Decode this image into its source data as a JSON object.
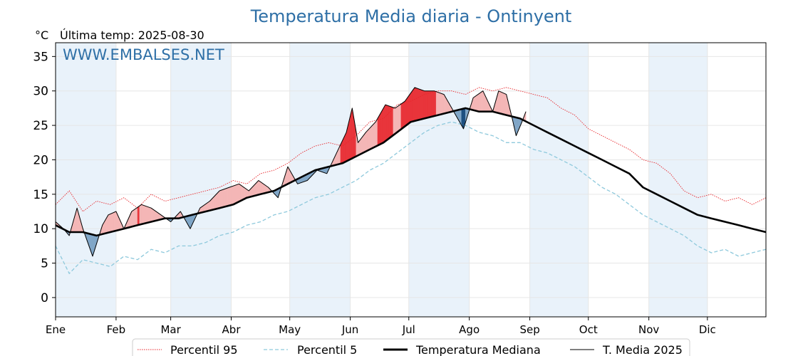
{
  "header": {
    "title": "Temperatura Media diaria - Ontinyent",
    "unit": "°C",
    "last_temp": "Última temp: 2025-08-30",
    "watermark": "WWW.EMBALSES.NET"
  },
  "colors": {
    "title": "#2e6fa6",
    "watermark": "#2e6fa6",
    "p95": "#e8262b",
    "p5": "#8ec9dc",
    "median": "#000000",
    "current": "#000000",
    "above_light": "#f4b6b6",
    "above_dark": "#e8343a",
    "below_light": "#80a6c7",
    "below_dark": "#1d4f80",
    "shade": "#e9f2fa"
  },
  "chart_data": {
    "type": "line",
    "title": "Temperatura Media diaria - Ontinyent",
    "ylabel": "°C",
    "ylim": [
      -2.8,
      37
    ],
    "yticks": [
      0,
      5,
      10,
      15,
      20,
      25,
      30,
      35
    ],
    "xlim": [
      1,
      365
    ],
    "grid": true,
    "legend_position": "bottom",
    "months": [
      {
        "label": "Ene",
        "day": 1
      },
      {
        "label": "Feb",
        "day": 32
      },
      {
        "label": "Mar",
        "day": 60
      },
      {
        "label": "Abr",
        "day": 91
      },
      {
        "label": "May",
        "day": 121
      },
      {
        "label": "Jun",
        "day": 152
      },
      {
        "label": "Jul",
        "day": 182
      },
      {
        "label": "Ago",
        "day": 213
      },
      {
        "label": "Sep",
        "day": 244
      },
      {
        "label": "Oct",
        "day": 274
      },
      {
        "label": "Nov",
        "day": 305
      },
      {
        "label": "Dic",
        "day": 335
      }
    ],
    "series": [
      {
        "name": "Percentil 95",
        "style": "dotted-red",
        "x": [
          1,
          8,
          15,
          22,
          29,
          36,
          43,
          50,
          57,
          64,
          71,
          78,
          85,
          92,
          99,
          106,
          113,
          120,
          127,
          134,
          141,
          148,
          155,
          162,
          169,
          176,
          183,
          190,
          197,
          204,
          211,
          218,
          225,
          232,
          239,
          246,
          253,
          260,
          267,
          274,
          281,
          288,
          295,
          302,
          309,
          316,
          323,
          330,
          337,
          344,
          351,
          358,
          365
        ],
        "y": [
          13.5,
          15.5,
          12.5,
          14.0,
          13.5,
          14.5,
          13.0,
          15.0,
          14.0,
          14.5,
          15.0,
          15.5,
          16.0,
          17.0,
          16.5,
          18.0,
          18.5,
          19.5,
          21.0,
          22.0,
          22.5,
          22.0,
          23.5,
          25.5,
          26.0,
          28.0,
          28.5,
          29.5,
          30.0,
          30.0,
          29.5,
          30.5,
          30.0,
          30.5,
          30.0,
          29.5,
          29.0,
          27.5,
          26.5,
          24.5,
          23.5,
          22.5,
          21.5,
          20.0,
          19.5,
          18.0,
          15.5,
          14.5,
          15.0,
          14.0,
          14.5,
          13.5,
          14.5
        ]
      },
      {
        "name": "Percentil 5",
        "style": "dashed-lightblue",
        "x": [
          1,
          8,
          15,
          22,
          29,
          36,
          43,
          50,
          57,
          64,
          71,
          78,
          85,
          92,
          99,
          106,
          113,
          120,
          127,
          134,
          141,
          148,
          155,
          162,
          169,
          176,
          183,
          190,
          197,
          204,
          211,
          218,
          225,
          232,
          239,
          246,
          253,
          260,
          267,
          274,
          281,
          288,
          295,
          302,
          309,
          316,
          323,
          330,
          337,
          344,
          351,
          358,
          365
        ],
        "y": [
          7.5,
          3.5,
          5.5,
          5.0,
          4.5,
          6.0,
          5.5,
          7.0,
          6.5,
          7.5,
          7.5,
          8.0,
          9.0,
          9.5,
          10.5,
          11.0,
          12.0,
          12.5,
          13.5,
          14.5,
          15.0,
          16.0,
          17.0,
          18.5,
          19.5,
          21.0,
          22.5,
          24.0,
          25.0,
          25.5,
          25.0,
          24.0,
          23.5,
          22.5,
          22.5,
          21.5,
          21.0,
          20.0,
          19.0,
          17.5,
          16.0,
          15.0,
          13.5,
          12.0,
          11.0,
          10.0,
          9.0,
          7.5,
          6.5,
          7.0,
          6.0,
          6.5,
          7.0
        ]
      },
      {
        "name": "Temperatura Mediana",
        "style": "thick-black",
        "x": [
          1,
          8,
          15,
          22,
          29,
          36,
          43,
          50,
          57,
          64,
          71,
          78,
          85,
          92,
          99,
          106,
          113,
          120,
          127,
          134,
          141,
          148,
          155,
          162,
          169,
          176,
          183,
          190,
          197,
          204,
          211,
          218,
          225,
          232,
          239,
          246,
          253,
          260,
          267,
          274,
          281,
          288,
          295,
          302,
          309,
          316,
          323,
          330,
          337,
          344,
          351,
          358,
          365
        ],
        "y": [
          10.5,
          9.5,
          9.5,
          9.0,
          9.5,
          10.0,
          10.5,
          11.0,
          11.5,
          11.5,
          12.0,
          12.5,
          13.0,
          13.5,
          14.5,
          15.0,
          15.5,
          16.5,
          17.5,
          18.5,
          19.0,
          19.5,
          20.5,
          21.5,
          22.5,
          24.0,
          25.5,
          26.0,
          26.5,
          27.0,
          27.5,
          27.0,
          27.0,
          26.5,
          26.0,
          25.0,
          24.0,
          23.0,
          22.0,
          21.0,
          20.0,
          19.0,
          18.0,
          16.0,
          15.0,
          14.0,
          13.0,
          12.0,
          11.5,
          11.0,
          10.5,
          10.0,
          9.5
        ]
      },
      {
        "name": "T. Media 2025",
        "style": "thin-black",
        "x": [
          1,
          5,
          8,
          12,
          15,
          20,
          25,
          28,
          32,
          36,
          40,
          45,
          50,
          55,
          60,
          65,
          70,
          75,
          80,
          85,
          90,
          95,
          100,
          105,
          110,
          115,
          120,
          125,
          130,
          135,
          140,
          145,
          150,
          153,
          156,
          160,
          165,
          170,
          175,
          180,
          185,
          190,
          195,
          200,
          205,
          210,
          215,
          220,
          225,
          228,
          232,
          235,
          237,
          240,
          242
        ],
        "y": [
          11.0,
          10.0,
          9.0,
          13.0,
          10.0,
          6.0,
          10.5,
          12.0,
          12.5,
          10.0,
          12.5,
          13.5,
          13.0,
          12.0,
          11.0,
          12.5,
          10.0,
          13.0,
          14.0,
          15.5,
          16.0,
          16.5,
          15.5,
          17.0,
          16.0,
          14.5,
          19.0,
          16.5,
          17.0,
          18.5,
          18.0,
          21.0,
          24.0,
          27.5,
          22.5,
          24.0,
          25.5,
          28.0,
          27.5,
          28.5,
          30.5,
          30.0,
          30.0,
          29.5,
          27.0,
          24.5,
          29.0,
          30.0,
          27.0,
          30.0,
          29.5,
          26.0,
          23.5,
          25.5,
          27.0
        ]
      }
    ]
  },
  "legend": {
    "items": [
      {
        "label": "Percentil 95"
      },
      {
        "label": "Percentil 5"
      },
      {
        "label": "Temperatura Mediana"
      },
      {
        "label": "T. Media 2025"
      }
    ]
  }
}
